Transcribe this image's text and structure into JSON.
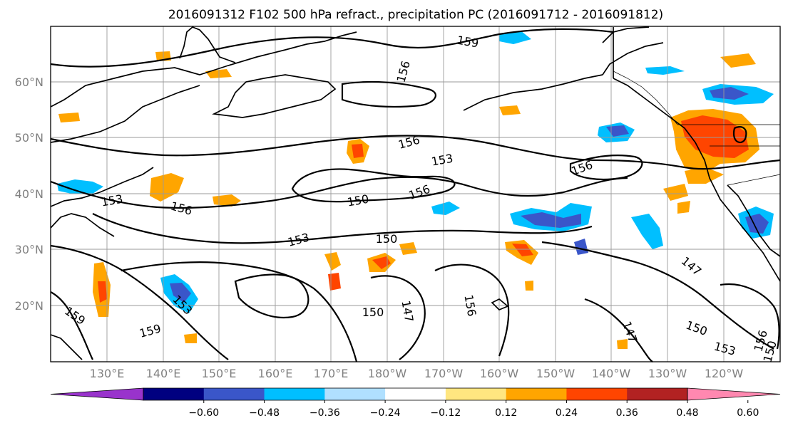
{
  "title": "2016091312 F102 500 hPa refract., precipitation PC (2016091712 - 2016091812)",
  "map": {
    "lon_labels": [
      "130°E",
      "140°E",
      "150°E",
      "160°E",
      "170°E",
      "180°W",
      "170°W",
      "160°W",
      "150°W",
      "140°W",
      "130°W",
      "120°W"
    ],
    "lat_labels": [
      "60°N",
      "50°N",
      "40°N",
      "30°N",
      "20°N"
    ],
    "contour_labels": [
      "159",
      "156",
      "156",
      "153",
      "156",
      "150",
      "156",
      "153",
      "150",
      "153",
      "150",
      "147",
      "156",
      "147",
      "150",
      "153",
      "156",
      "159",
      "159",
      "153",
      "156",
      "147",
      "150"
    ]
  },
  "colorbar": {
    "ticks": [
      "−0.60",
      "−0.48",
      "−0.36",
      "−0.24",
      "−0.12",
      "0.12",
      "0.24",
      "0.36",
      "0.48",
      "0.60"
    ],
    "colors": [
      "#9933cc",
      "#000080",
      "#3a56c9",
      "#00bfff",
      "#b0e0ff",
      "#ffffff",
      "#ffe680",
      "#ffa500",
      "#ff4500",
      "#b22222",
      "#ff88b0"
    ]
  },
  "colors": {
    "neg_strong": "#3a56c9",
    "neg_mid": "#00bfff",
    "neg_light": "#b0e0ff",
    "pos_light": "#ffe680",
    "pos_mid": "#ffa500",
    "pos_strong": "#ff4500"
  }
}
